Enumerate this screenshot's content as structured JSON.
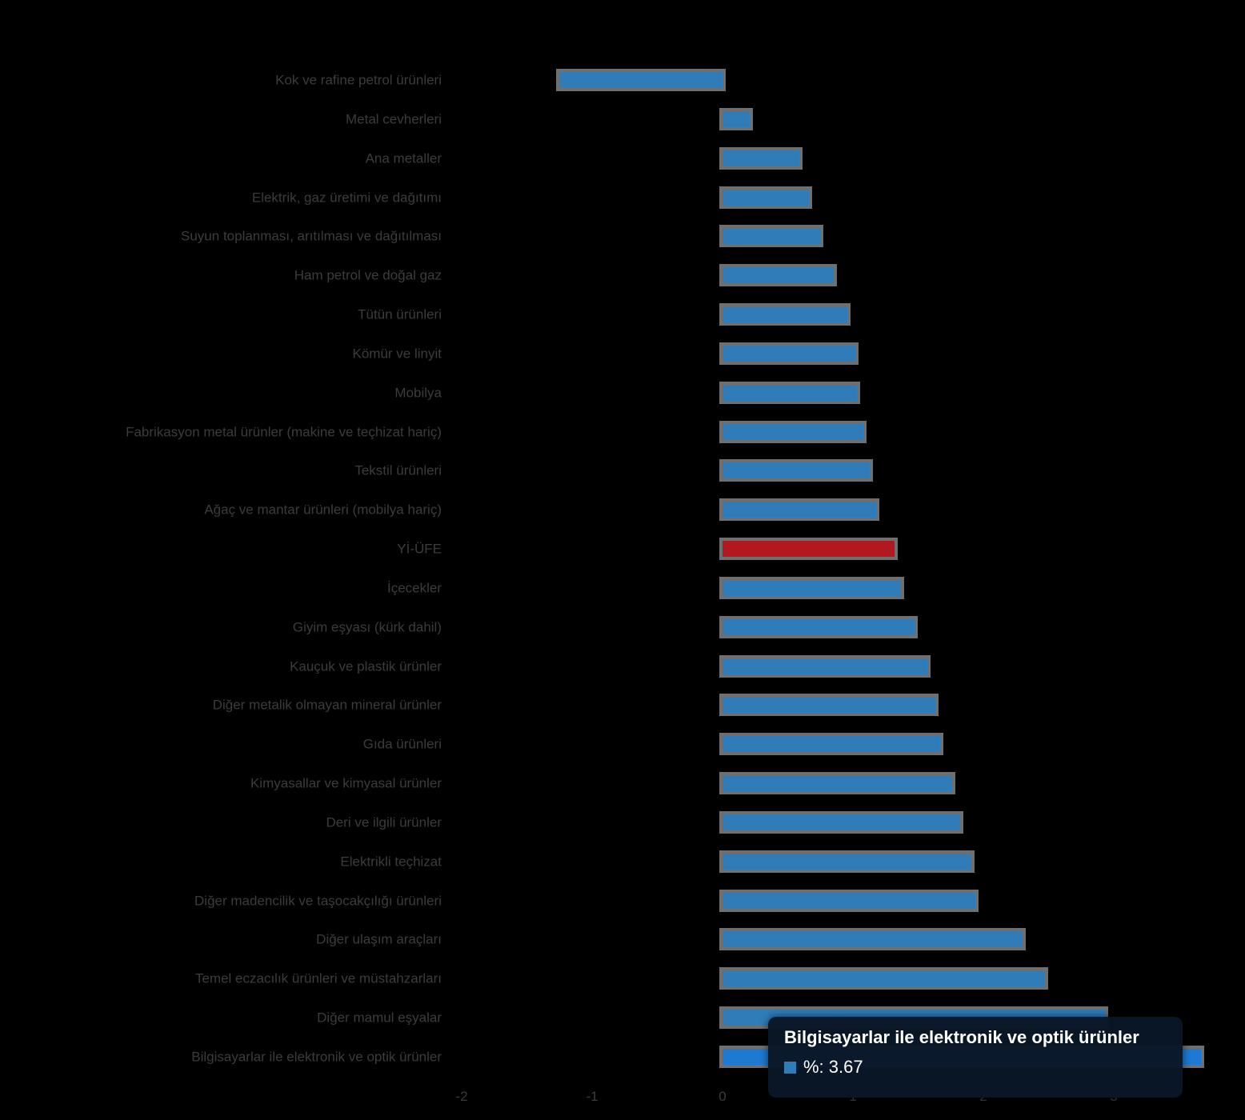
{
  "chart_data": {
    "type": "bar",
    "orientation": "horizontal",
    "title": "",
    "xlabel": "",
    "ylabel": "",
    "xlim": [
      -2.6,
      4.0
    ],
    "x_ticks": [
      -2,
      -1,
      0,
      1,
      2,
      3
    ],
    "grid": false,
    "legend": "none",
    "categories": [
      "Kok ve rafine petrol ürünleri",
      "Metal cevherleri",
      "Ana metaller",
      "Elektrik, gaz üretimi ve dağıtımı",
      "Suyun toplanması, arıtılması ve dağıtılması",
      "Ham petrol ve doğal gaz",
      "Tütün ürünleri",
      "Kömür ve linyit",
      "Mobilya",
      "Fabrikasyon metal ürünler (makine ve teçhizat hariç)",
      "Tekstil ürünleri",
      "Ağaç ve mantar ürünleri (mobilya hariç)",
      "Yİ-ÜFE",
      "İçecekler",
      "Giyim eşyası (kürk dahil)",
      "Kauçuk ve plastik ürünler",
      "Diğer metalik olmayan mineral ürünler",
      "Gıda ürünleri",
      "Kimyasallar ve kimyasal ürünler",
      "Deri ve ilgili ürünler",
      "Elektrikli teçhizat",
      "Diğer madencilik ve taşocakçılığı ürünleri",
      "Diğer ulaşım araçları",
      "Temel eczacılık ürünleri ve müstahzarları",
      "Diğer mamul eşyalar",
      "Bilgisayarlar ile elektronik ve optik ürünler"
    ],
    "values": [
      -1.25,
      0.21,
      0.59,
      0.66,
      0.75,
      0.85,
      0.96,
      1.02,
      1.03,
      1.08,
      1.13,
      1.18,
      1.32,
      1.37,
      1.47,
      1.57,
      1.63,
      1.67,
      1.76,
      1.82,
      1.91,
      1.94,
      2.3,
      2.47,
      2.93,
      3.67
    ],
    "highlight_index": 12,
    "hovered_index": 25,
    "colors": {
      "bar": "#2f7cb8",
      "highlight": "#b2191e",
      "hovered": "#1d79d2",
      "bar_border": "#6f6f6f",
      "label_text": "#3c3c3c",
      "tick_text": "#3b3b3b",
      "background": "#000000"
    }
  },
  "axis": {
    "tick_labels": [
      "-2",
      "-1",
      "0",
      "1",
      "2",
      "3"
    ]
  },
  "tooltip": {
    "title": "Bilgisayarlar ile elektronik ve optik ürünler",
    "value_text": "%: 3.67",
    "legend_color": "#2f7cb8",
    "bg": "#091726"
  }
}
